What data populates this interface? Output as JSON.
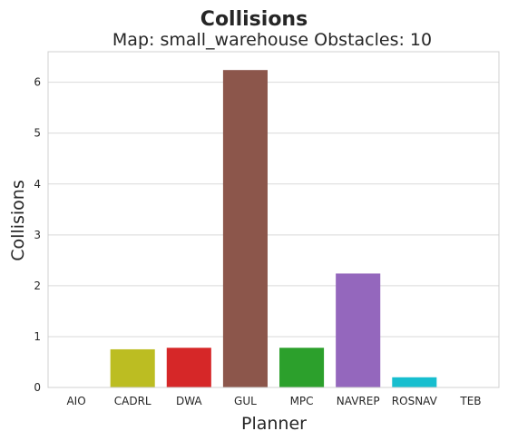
{
  "chart_data": {
    "type": "bar",
    "title": "Collisions",
    "subtitle": "Map: small_warehouse Obstacles: 10",
    "xlabel": "Planner",
    "ylabel": "Collisions",
    "categories": [
      "AIO",
      "CADRL",
      "DWA",
      "GUL",
      "MPC",
      "NAVREP",
      "ROSNAV",
      "TEB"
    ],
    "values": [
      0,
      0.75,
      0.78,
      6.24,
      0.78,
      2.24,
      0.2,
      0
    ],
    "colors": [
      "#1f77b4",
      "#bcbd22",
      "#d62728",
      "#8c564b",
      "#2ca02c",
      "#9467bd",
      "#17becf",
      "#ff7f0e"
    ],
    "ylim": [
      0,
      6.6
    ],
    "yticks": [
      0,
      1,
      2,
      3,
      4,
      5,
      6
    ],
    "grid": true
  }
}
